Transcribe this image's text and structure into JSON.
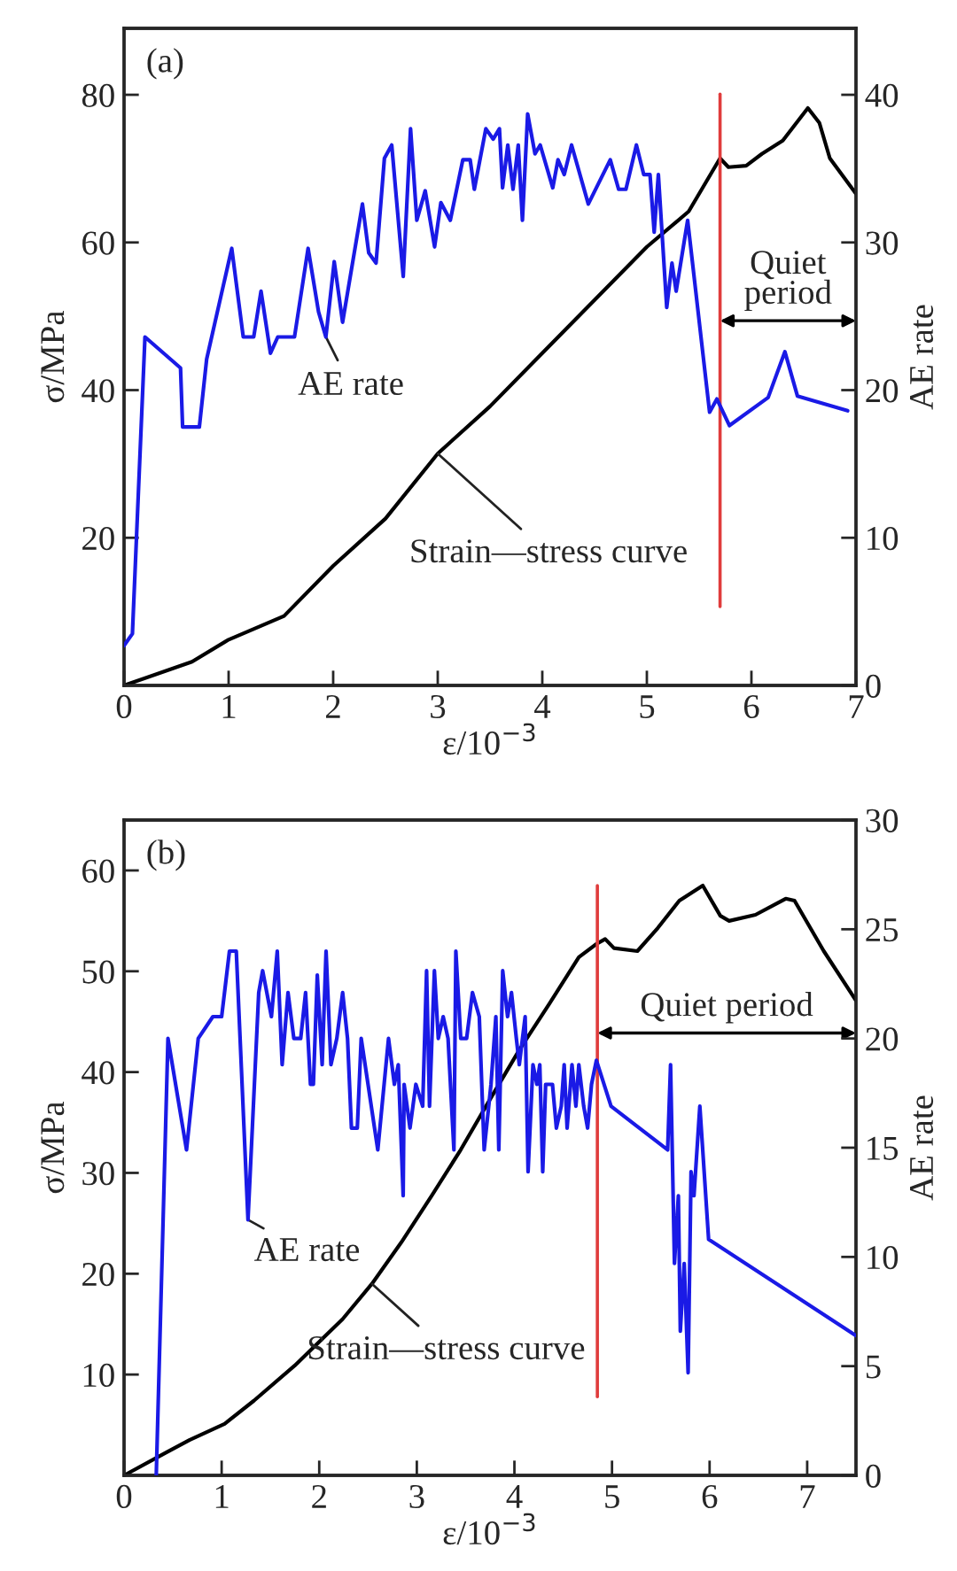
{
  "chart_data": [
    {
      "type": "line",
      "title": "(a)",
      "xlabel": "ε/10$^{−3}$",
      "ylabel": "σ/MPa",
      "y2label": "AE rate",
      "xlim": [
        0,
        7
      ],
      "xticks": [
        0,
        1,
        2,
        3,
        4,
        5,
        6,
        7
      ],
      "ylim": [
        0,
        89
      ],
      "yticks": [
        20,
        40,
        60,
        80
      ],
      "y2lim": [
        0,
        44.5
      ],
      "y2ticks": [
        0,
        10,
        20,
        30,
        40
      ],
      "grid": false,
      "series": [
        {
          "name": "AE rate",
          "axis": "y2",
          "color": "#1a1ae6",
          "x": [
            0,
            0.08,
            0.2,
            0.54,
            0.56,
            0.72,
            0.79,
            1.03,
            1.14,
            1.24,
            1.31,
            1.4,
            1.47,
            1.63,
            1.76,
            1.86,
            1.93,
            2.01,
            2.09,
            2.28,
            2.34,
            2.41,
            2.49,
            2.56,
            2.67,
            2.74,
            2.8,
            2.88,
            2.97,
            3.03,
            3.12,
            3.24,
            3.31,
            3.35,
            3.46,
            3.53,
            3.59,
            3.62,
            3.67,
            3.72,
            3.77,
            3.81,
            3.86,
            3.93,
            3.98,
            4.1,
            4.15,
            4.21,
            4.28,
            4.44,
            4.65,
            4.73,
            4.8,
            4.9,
            4.97,
            5.03,
            5.07,
            5.11,
            5.19,
            5.24,
            5.28,
            5.39,
            5.6,
            5.67,
            5.79,
            6.16,
            6.32,
            6.44,
            6.92
          ],
          "values": [
            2.7,
            3.5,
            23.6,
            21.5,
            17.5,
            17.5,
            22.1,
            29.6,
            23.6,
            23.6,
            26.7,
            22.5,
            23.6,
            23.6,
            29.6,
            25.3,
            23.6,
            28.7,
            24.6,
            32.6,
            29.3,
            28.6,
            35.7,
            36.6,
            27.7,
            37.7,
            31.5,
            33.5,
            29.7,
            32.7,
            31.5,
            35.6,
            35.6,
            33.6,
            37.7,
            37,
            37.7,
            33.7,
            36.6,
            33.6,
            36.6,
            31.5,
            38.7,
            36,
            36.6,
            33.7,
            35.6,
            34.6,
            36.6,
            32.6,
            35.6,
            33.6,
            33.6,
            36.6,
            34.6,
            34.6,
            30.7,
            34.6,
            25.6,
            28.6,
            26.7,
            31.5,
            18.5,
            19.4,
            17.6,
            19.5,
            22.6,
            19.6,
            18.6
          ]
        },
        {
          "name": "Strain—stress curve",
          "color": "#000000",
          "x": [
            0,
            0.65,
            1,
            1.53,
            2,
            2.5,
            3,
            3.5,
            4,
            4.5,
            5,
            5.4,
            5.7,
            5.78,
            5.95,
            6.1,
            6.3,
            6.54,
            6.65,
            6.75,
            7
          ],
          "values": [
            0,
            3.2,
            6.2,
            9.4,
            16.2,
            22.6,
            31.4,
            37.8,
            45,
            52.2,
            59.4,
            64.2,
            71.4,
            70.2,
            70.4,
            72,
            73.8,
            78.2,
            76.2,
            71.4,
            66.6
          ]
        }
      ],
      "ref_lines": [
        {
          "axis": "x",
          "value": 5.7,
          "color": "#e03c3c"
        }
      ],
      "annotations": [
        "Quiet\nperiod"
      ]
    },
    {
      "type": "line",
      "title": "(b)",
      "xlabel": "ε/10$^{−3}$",
      "ylabel": "σ/MPa",
      "y2label": "AE rate",
      "xlim": [
        0,
        7.5
      ],
      "xticks": [
        0,
        1,
        2,
        3,
        4,
        5,
        6,
        7
      ],
      "ylim": [
        0,
        65
      ],
      "yticks": [
        10,
        20,
        30,
        40,
        50,
        60
      ],
      "y2lim": [
        0,
        30
      ],
      "y2ticks": [
        0,
        5,
        10,
        15,
        20,
        25,
        30
      ],
      "grid": false,
      "series": [
        {
          "name": "AE rate",
          "axis": "y2",
          "color": "#1a1ae6",
          "x": [
            0.33,
            0.45,
            0.64,
            0.76,
            0.91,
            1.0,
            1.08,
            1.15,
            1.27,
            1.38,
            1.42,
            1.51,
            1.57,
            1.62,
            1.68,
            1.74,
            1.81,
            1.86,
            1.91,
            1.94,
            1.98,
            2.03,
            2.07,
            2.12,
            2.18,
            2.24,
            2.29,
            2.33,
            2.39,
            2.43,
            2.6,
            2.71,
            2.77,
            2.81,
            2.86,
            2.87,
            2.93,
            2.99,
            3.06,
            3.1,
            3.13,
            3.18,
            3.22,
            3.27,
            3.32,
            3.38,
            3.4,
            3.45,
            3.51,
            3.57,
            3.64,
            3.69,
            3.76,
            3.81,
            3.84,
            3.88,
            3.93,
            3.97,
            4.02,
            4.05,
            4.11,
            4.14,
            4.19,
            4.23,
            4.26,
            4.29,
            4.32,
            4.39,
            4.43,
            4.48,
            4.51,
            4.54,
            4.59,
            4.63,
            4.66,
            4.71,
            4.75,
            4.79,
            4.84,
            4.99,
            5.57,
            5.6,
            5.64,
            5.68,
            5.7,
            5.74,
            5.78,
            5.81,
            5.84,
            5.9,
            5.99,
            7.5
          ],
          "values": [
            0,
            20,
            14.9,
            20,
            21,
            21,
            24,
            24,
            11.7,
            22.1,
            23.1,
            21,
            24,
            18.8,
            22.1,
            20,
            20,
            22.1,
            17.9,
            17.9,
            22.9,
            18.8,
            24,
            18.8,
            20,
            22.1,
            20,
            15.9,
            15.9,
            20,
            14.9,
            20,
            17.9,
            18.8,
            12.8,
            17.9,
            15.9,
            17.9,
            16.9,
            23.1,
            16.9,
            23.1,
            20,
            21,
            20,
            14.9,
            24,
            20,
            20,
            22.1,
            21,
            14.9,
            17.9,
            21,
            14.9,
            23.1,
            21,
            22.1,
            20,
            18.8,
            21,
            13.9,
            18.8,
            17.9,
            18.8,
            13.9,
            17.9,
            17.9,
            15.9,
            16.9,
            18.8,
            15.9,
            18.8,
            16.9,
            18.8,
            16.9,
            15.9,
            17.9,
            19,
            16.9,
            14.9,
            18.8,
            9.7,
            12.8,
            6.6,
            9.7,
            4.7,
            13.9,
            12.8,
            16.9,
            10.8,
            6.4
          ]
        },
        {
          "name": "Strain—stress curve",
          "color": "#000000",
          "x": [
            0,
            0.42,
            0.67,
            1.03,
            1.33,
            1.75,
            2.24,
            2.54,
            2.84,
            3.15,
            3.45,
            3.75,
            4.05,
            4.36,
            4.66,
            4.84,
            4.93,
            5.02,
            5.26,
            5.47,
            5.69,
            5.93,
            6.11,
            6.2,
            6.47,
            6.78,
            6.87,
            7.17,
            7.5
          ],
          "values": [
            0,
            2.2,
            3.5,
            5.1,
            7.4,
            10.9,
            15.5,
            19,
            23.1,
            27.7,
            32.3,
            37.3,
            42.2,
            46.8,
            51.4,
            52.7,
            53.2,
            52.3,
            52,
            54.3,
            57,
            58.5,
            55.5,
            55,
            55.6,
            57.2,
            57,
            52,
            47.1
          ]
        }
      ],
      "ref_lines": [
        {
          "axis": "x",
          "value": 4.85,
          "color": "#e03c3c"
        }
      ],
      "annotations": [
        "Quiet period"
      ]
    }
  ]
}
